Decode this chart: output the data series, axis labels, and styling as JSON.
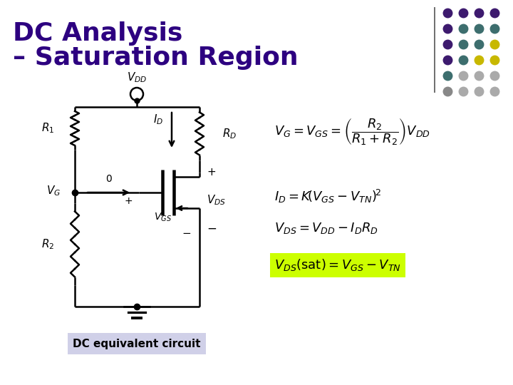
{
  "title_line1": "DC Analysis",
  "title_line2": "– Saturation Region",
  "title_color": "#2d0080",
  "bg_color": "#ffffff",
  "circuit_color": "#000000",
  "eq_color": "#000000",
  "highlight_color": "#ccff00",
  "dc_eq_caption": "DC equivalent circuit",
  "dc_eq_bg": "#d0d0e8",
  "dot_colors": [
    [
      "#3d1a6e",
      "#3d1a6e",
      "#3d1a6e",
      "#3d1a6e"
    ],
    [
      "#3d1a6e",
      "#3d6e6e",
      "#3d6e6e",
      "#3d6e6e"
    ],
    [
      "#3d1a6e",
      "#3d6e6e",
      "#3d6e6e",
      "#c8b800"
    ],
    [
      "#3d1a6e",
      "#3d6e6e",
      "#c8b800",
      "#c8b800"
    ],
    [
      "#3d6e6e",
      "#aaaaaa",
      "#aaaaaa",
      "#aaaaaa"
    ],
    [
      "#888888",
      "#aaaaaa",
      "#aaaaaa",
      "#aaaaaa"
    ]
  ]
}
